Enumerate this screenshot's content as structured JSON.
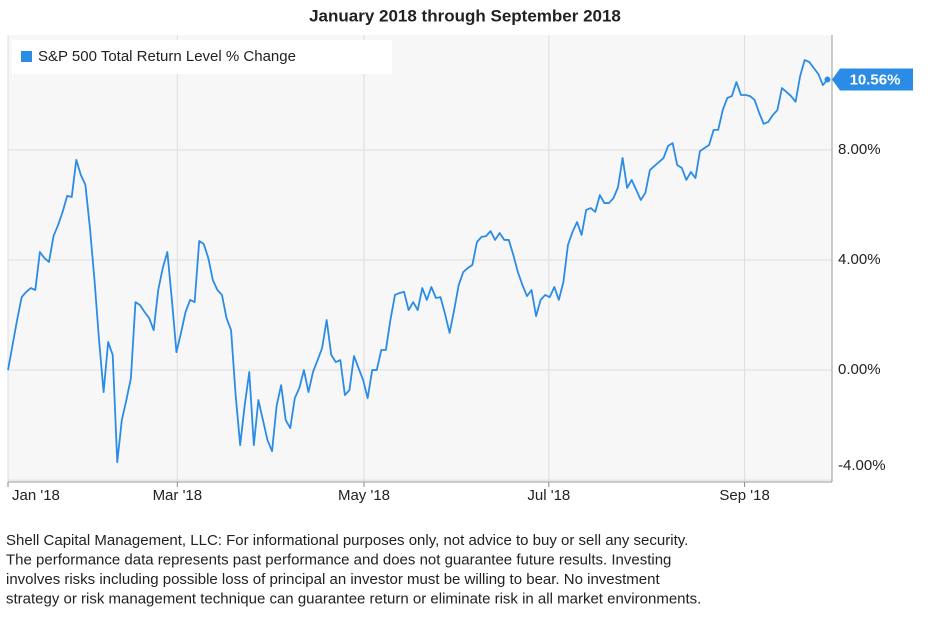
{
  "chart_data": {
    "type": "line",
    "title": "January 2018 through September 2018",
    "series": [
      {
        "name": "S&P 500 Total Return Level % Change",
        "color": "#2b8ce6",
        "values": [
          0.0,
          0.91,
          1.82,
          2.65,
          2.84,
          2.98,
          2.91,
          4.29,
          4.07,
          3.93,
          4.87,
          5.27,
          5.75,
          6.33,
          6.29,
          7.64,
          7.09,
          6.73,
          5.16,
          3.27,
          1.09,
          -0.8,
          1.02,
          0.55,
          -3.35,
          -1.82,
          -1.09,
          -0.29,
          2.47,
          2.36,
          2.11,
          1.89,
          1.45,
          2.91,
          3.71,
          4.29,
          2.55,
          0.65,
          1.35,
          2.11,
          2.55,
          2.47,
          4.69,
          4.58,
          4.07,
          3.27,
          2.91,
          2.73,
          1.89,
          1.45,
          -0.91,
          -2.73,
          -1.27,
          -0.07,
          -2.73,
          -1.09,
          -1.82,
          -2.55,
          -2.95,
          -1.31,
          -0.55,
          -1.82,
          -2.11,
          -1.02,
          -0.65,
          0.0,
          -0.8,
          -0.07,
          0.36,
          0.8,
          1.82,
          0.55,
          0.29,
          0.36,
          -0.91,
          -0.73,
          0.51,
          0.07,
          -0.36,
          -1.02,
          0.0,
          0.0,
          0.73,
          0.73,
          1.82,
          2.73,
          2.8,
          2.84,
          2.18,
          2.47,
          2.18,
          2.98,
          2.55,
          3.02,
          2.62,
          2.65,
          2.04,
          1.35,
          2.18,
          3.09,
          3.56,
          3.71,
          3.82,
          4.65,
          4.84,
          4.87,
          5.05,
          4.73,
          4.98,
          4.73,
          4.73,
          4.18,
          3.56,
          3.09,
          2.69,
          2.91,
          1.96,
          2.55,
          2.73,
          2.65,
          3.02,
          2.55,
          3.2,
          4.55,
          5.02,
          5.38,
          4.91,
          5.82,
          5.89,
          5.75,
          6.36,
          6.07,
          6.07,
          6.25,
          6.65,
          7.71,
          6.62,
          6.91,
          6.55,
          6.18,
          6.44,
          7.27,
          7.42,
          7.56,
          7.71,
          8.15,
          8.25,
          7.45,
          7.35,
          6.91,
          7.2,
          6.98,
          7.96,
          8.07,
          8.18,
          8.73,
          8.73,
          9.45,
          9.89,
          9.96,
          10.47,
          10.0,
          10.0,
          9.96,
          9.82,
          9.35,
          8.95,
          9.02,
          9.27,
          9.45,
          10.25,
          10.11,
          9.96,
          9.75,
          10.69,
          11.27,
          11.2,
          10.98,
          10.76,
          10.36,
          10.56
        ],
        "value_labels": [
          null,
          null,
          null,
          null,
          null,
          null,
          null,
          null,
          null,
          null,
          null,
          null,
          null,
          null,
          null,
          null,
          null,
          null,
          null,
          null,
          null,
          null,
          null,
          null,
          null,
          null,
          null,
          null,
          null,
          null,
          null,
          null,
          null,
          null,
          null,
          null,
          null,
          null,
          null,
          null,
          null,
          null,
          null,
          null,
          null,
          null,
          null,
          null,
          null,
          null,
          null,
          null,
          null,
          null,
          null,
          null,
          null,
          null,
          null,
          null,
          null,
          null,
          null,
          null,
          null,
          null,
          null,
          null,
          null,
          null,
          null,
          null,
          null,
          null,
          null,
          null,
          null,
          null,
          null,
          null,
          null,
          null,
          null,
          null,
          null,
          null,
          null,
          null,
          null,
          null,
          null,
          null,
          null,
          null,
          null,
          null,
          null,
          null,
          null,
          null,
          null,
          null,
          null,
          null,
          null,
          null,
          null,
          null,
          null,
          null,
          null,
          null,
          null,
          null,
          null,
          null,
          null,
          null,
          null,
          null,
          null,
          null,
          null,
          null,
          null,
          null,
          null,
          null,
          null,
          null,
          null,
          null,
          null,
          null,
          null,
          null,
          null,
          null,
          null,
          null,
          null,
          null,
          null,
          null,
          null,
          null,
          null,
          null,
          null,
          null,
          null,
          null,
          null,
          null,
          null,
          null,
          null,
          null,
          null,
          null,
          null,
          null,
          null,
          null,
          null,
          null,
          null,
          null,
          null,
          null,
          null,
          null,
          null,
          null,
          null,
          null,
          null,
          null,
          null,
          null,
          "10.56%"
        ]
      }
    ],
    "xlim": [
      0,
      181
    ],
    "xticks": [
      {
        "value": 0,
        "label": "Jan '18"
      },
      {
        "value": 37.2,
        "label": "Mar '18"
      },
      {
        "value": 78.2,
        "label": "May '18"
      },
      {
        "value": 118.8,
        "label": "Jul '18"
      },
      {
        "value": 161.8,
        "label": "Sep '18"
      }
    ],
    "ylim": [
      -4.07,
      12.18
    ],
    "yticks": [
      {
        "value": -4,
        "label": "-4.00%"
      },
      {
        "value": 0,
        "label": "0.00%"
      },
      {
        "value": 4,
        "label": "4.00%"
      },
      {
        "value": 8,
        "label": "8.00%"
      }
    ],
    "grid": true,
    "legend": "top-left",
    "note": [
      "Shell Capital Management, LLC: For informational purposes only, not advice to buy or sell any security.",
      "The performance data represents past performance and does not guarantee future results. Investing",
      "involves risks including possible loss of principal an investor must be willing to bear. No investment",
      "strategy or risk management technique can guarantee return or eliminate risk in all market environments."
    ]
  }
}
